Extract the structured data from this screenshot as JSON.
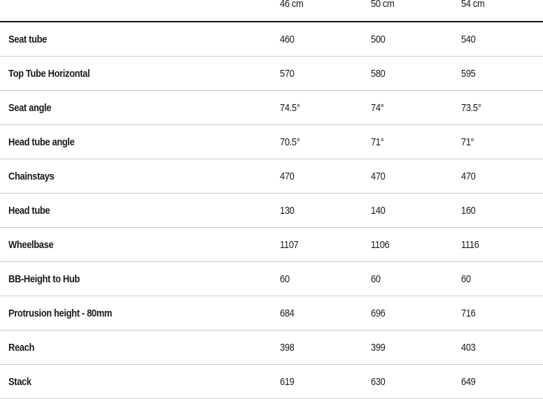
{
  "header": {
    "sizes": [
      "46 cm",
      "50 cm",
      "54 cm"
    ]
  },
  "rows": [
    {
      "label": "Seat tube",
      "values": [
        "460",
        "500",
        "540"
      ]
    },
    {
      "label": "Top Tube Horizontal",
      "values": [
        "570",
        "580",
        "595"
      ]
    },
    {
      "label": "Seat angle",
      "values": [
        "74.5°",
        "74°",
        "73.5°"
      ]
    },
    {
      "label": "Head tube angle",
      "values": [
        "70.5°",
        "71°",
        "71°"
      ]
    },
    {
      "label": "Chainstays",
      "values": [
        "470",
        "470",
        "470"
      ]
    },
    {
      "label": "Head tube",
      "values": [
        "130",
        "140",
        "160"
      ]
    },
    {
      "label": "Wheelbase",
      "values": [
        "1107",
        "1106",
        "1116"
      ]
    },
    {
      "label": "BB-Height to Hub",
      "values": [
        "60",
        "60",
        "60"
      ]
    },
    {
      "label": "Protrusion height - 80mm",
      "values": [
        "684",
        "696",
        "716"
      ]
    },
    {
      "label": "Reach",
      "values": [
        "398",
        "399",
        "403"
      ]
    },
    {
      "label": "Stack",
      "values": [
        "619",
        "630",
        "649"
      ]
    }
  ]
}
